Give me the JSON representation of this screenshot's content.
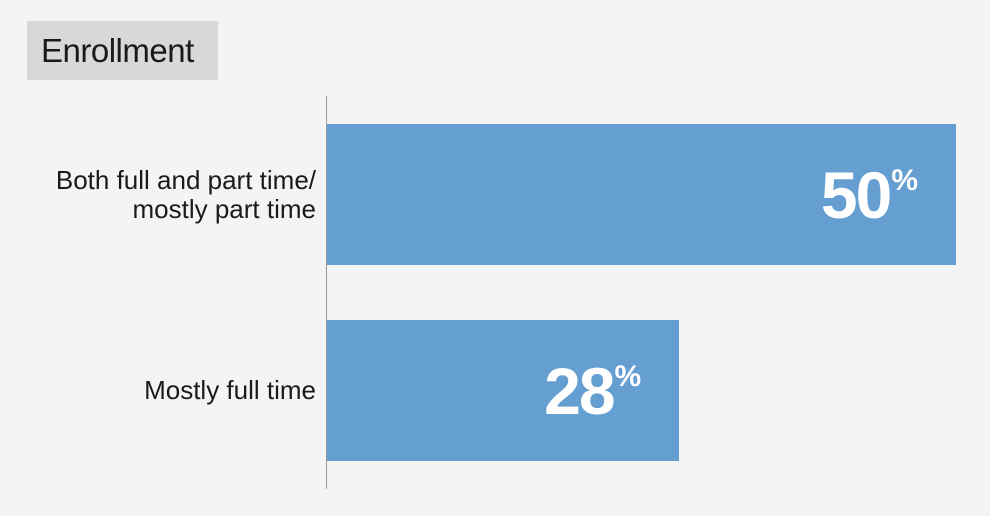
{
  "chart_data": {
    "type": "bar",
    "orientation": "horizontal",
    "title": "Enrollment",
    "xlim": [
      0,
      50
    ],
    "grid": false,
    "legend": "none",
    "categories": [
      [
        "Both full and part time/",
        "mostly part time"
      ],
      [
        "Mostly full time"
      ]
    ],
    "values": [
      50,
      28
    ],
    "value_labels": [
      "50",
      "28"
    ],
    "value_suffix": "%"
  },
  "colors": {
    "bar": "#659fd2",
    "background": "#f4f4f4",
    "title_background": "#d8d8da"
  }
}
